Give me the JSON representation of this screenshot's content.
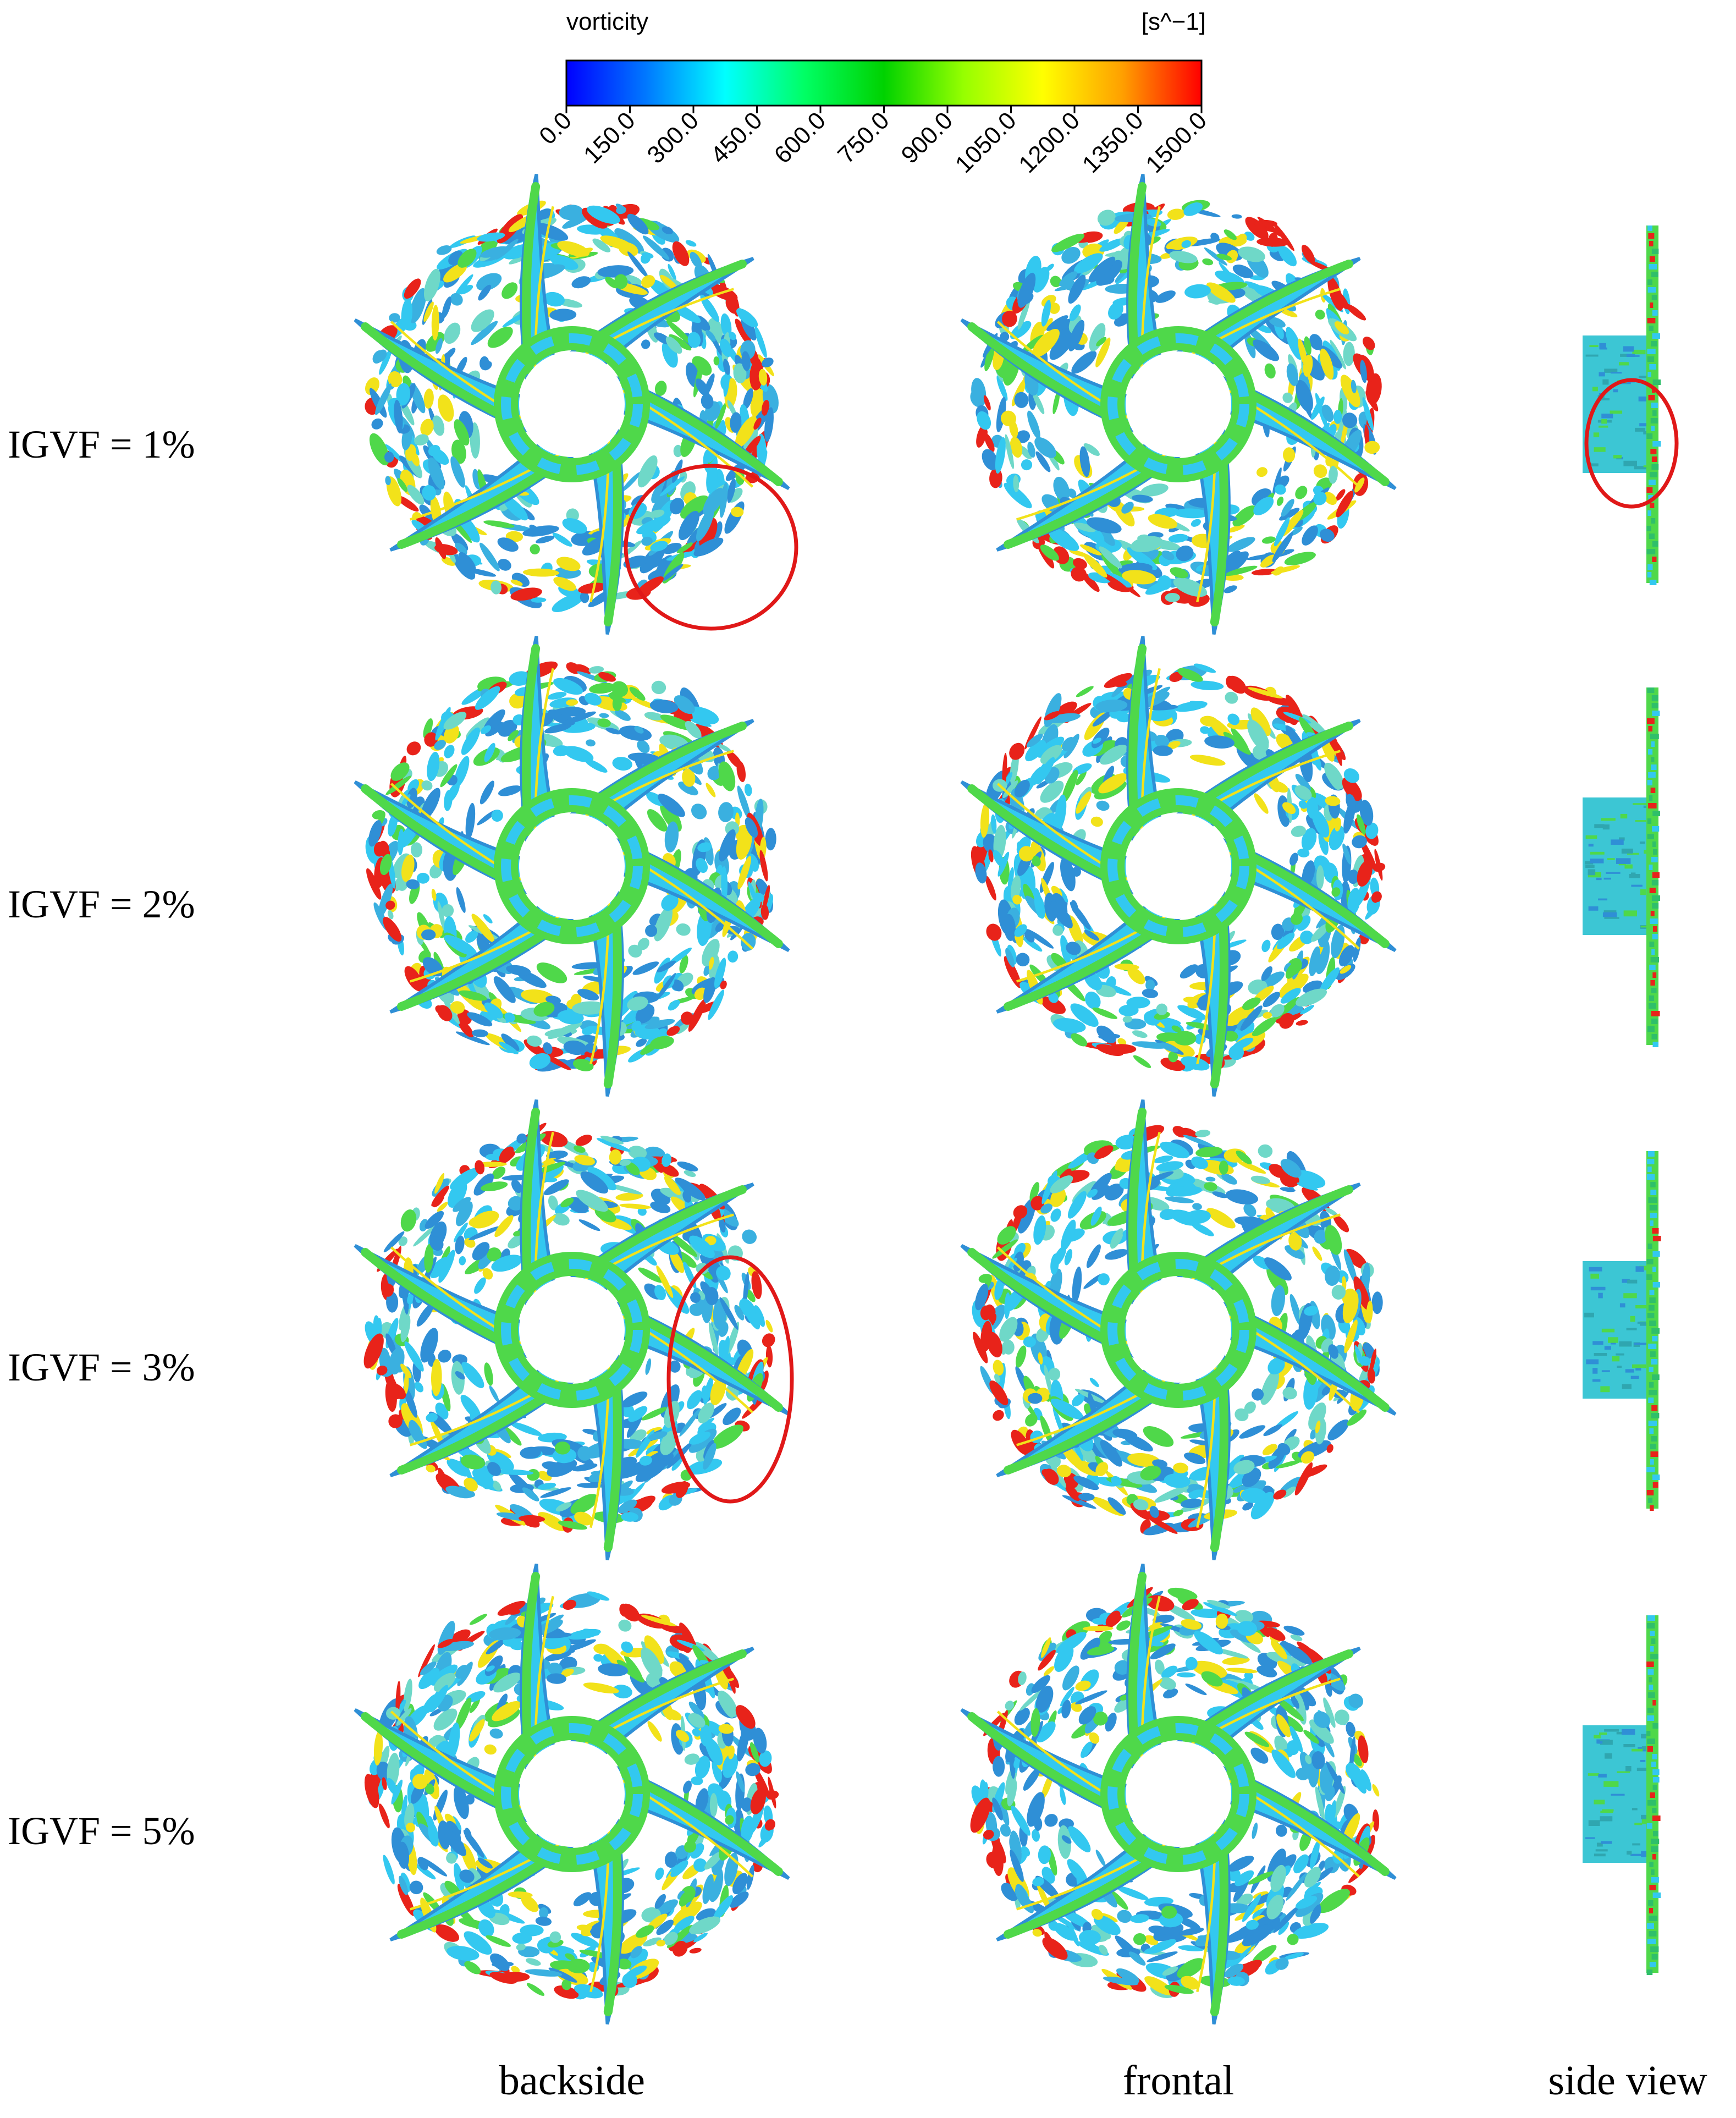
{
  "colorbar": {
    "variable": "vorticity",
    "unit": "[s^−1]",
    "ticks": [
      "0.0",
      "150.0",
      "300.0",
      "450.0",
      "600.0",
      "750.0",
      "900.0",
      "1050.0",
      "1200.0",
      "1350.0",
      "1500.0"
    ],
    "gradient": [
      "#0000ff",
      "#0078ff",
      "#00ffff",
      "#00ff64",
      "#00d200",
      "#96ff00",
      "#ffff00",
      "#ffa000",
      "#ff0000"
    ]
  },
  "rows": [
    {
      "label": "IGVF = 1%"
    },
    {
      "label": "IGVF = 2%"
    },
    {
      "label": "IGVF = 3%"
    },
    {
      "label": "IGVF = 5%"
    }
  ],
  "columns": [
    {
      "label": "backside"
    },
    {
      "label": "frontal"
    },
    {
      "label": "side view"
    }
  ],
  "palette": {
    "blade_cyan": "#33c8f0",
    "blade_blue": "#2f8fd6",
    "green": "#4fd84a",
    "yellow": "#f2e21a",
    "red": "#e8231a",
    "annotation": "#e01818"
  }
}
